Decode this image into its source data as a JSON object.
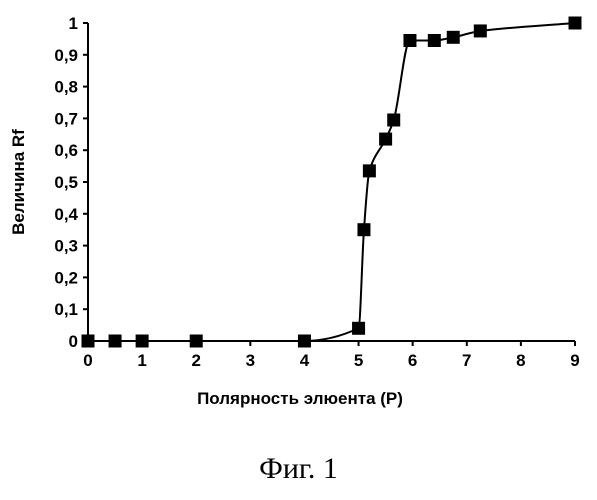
{
  "chart_data": {
    "type": "line",
    "title": "",
    "xlabel": "Полярность элюента (P)",
    "ylabel": "Величина Rf",
    "xlim": [
      0,
      9
    ],
    "ylim": [
      0,
      1
    ],
    "xticks": [
      0,
      1,
      2,
      3,
      4,
      5,
      6,
      7,
      8,
      9
    ],
    "yticks": [
      0,
      0.1,
      0.2,
      0.3,
      0.4,
      0.5,
      0.6,
      0.7,
      0.8,
      0.9,
      1
    ],
    "ytick_labels": [
      "0",
      "0,1",
      "0,2",
      "0,3",
      "0,4",
      "0,5",
      "0,6",
      "0,7",
      "0,8",
      "0,9",
      "1"
    ],
    "xtick_labels": [
      "0",
      "1",
      "2",
      "3",
      "4",
      "5",
      "6",
      "7",
      "8",
      "9"
    ],
    "grid": false,
    "marker": "square",
    "series": [
      {
        "name": "",
        "x": [
          0,
          0.5,
          1,
          2,
          4,
          5,
          5.1,
          5.2,
          5.5,
          5.65,
          5.95,
          6.4,
          6.75,
          7.25,
          9
        ],
        "values": [
          0,
          0,
          0,
          0,
          0,
          0.04,
          0.35,
          0.535,
          0.635,
          0.695,
          0.945,
          0.945,
          0.955,
          0.975,
          1.0
        ]
      }
    ]
  },
  "caption": "Фиг. 1",
  "colors": {
    "ink": "#000000",
    "background": "#ffffff"
  }
}
